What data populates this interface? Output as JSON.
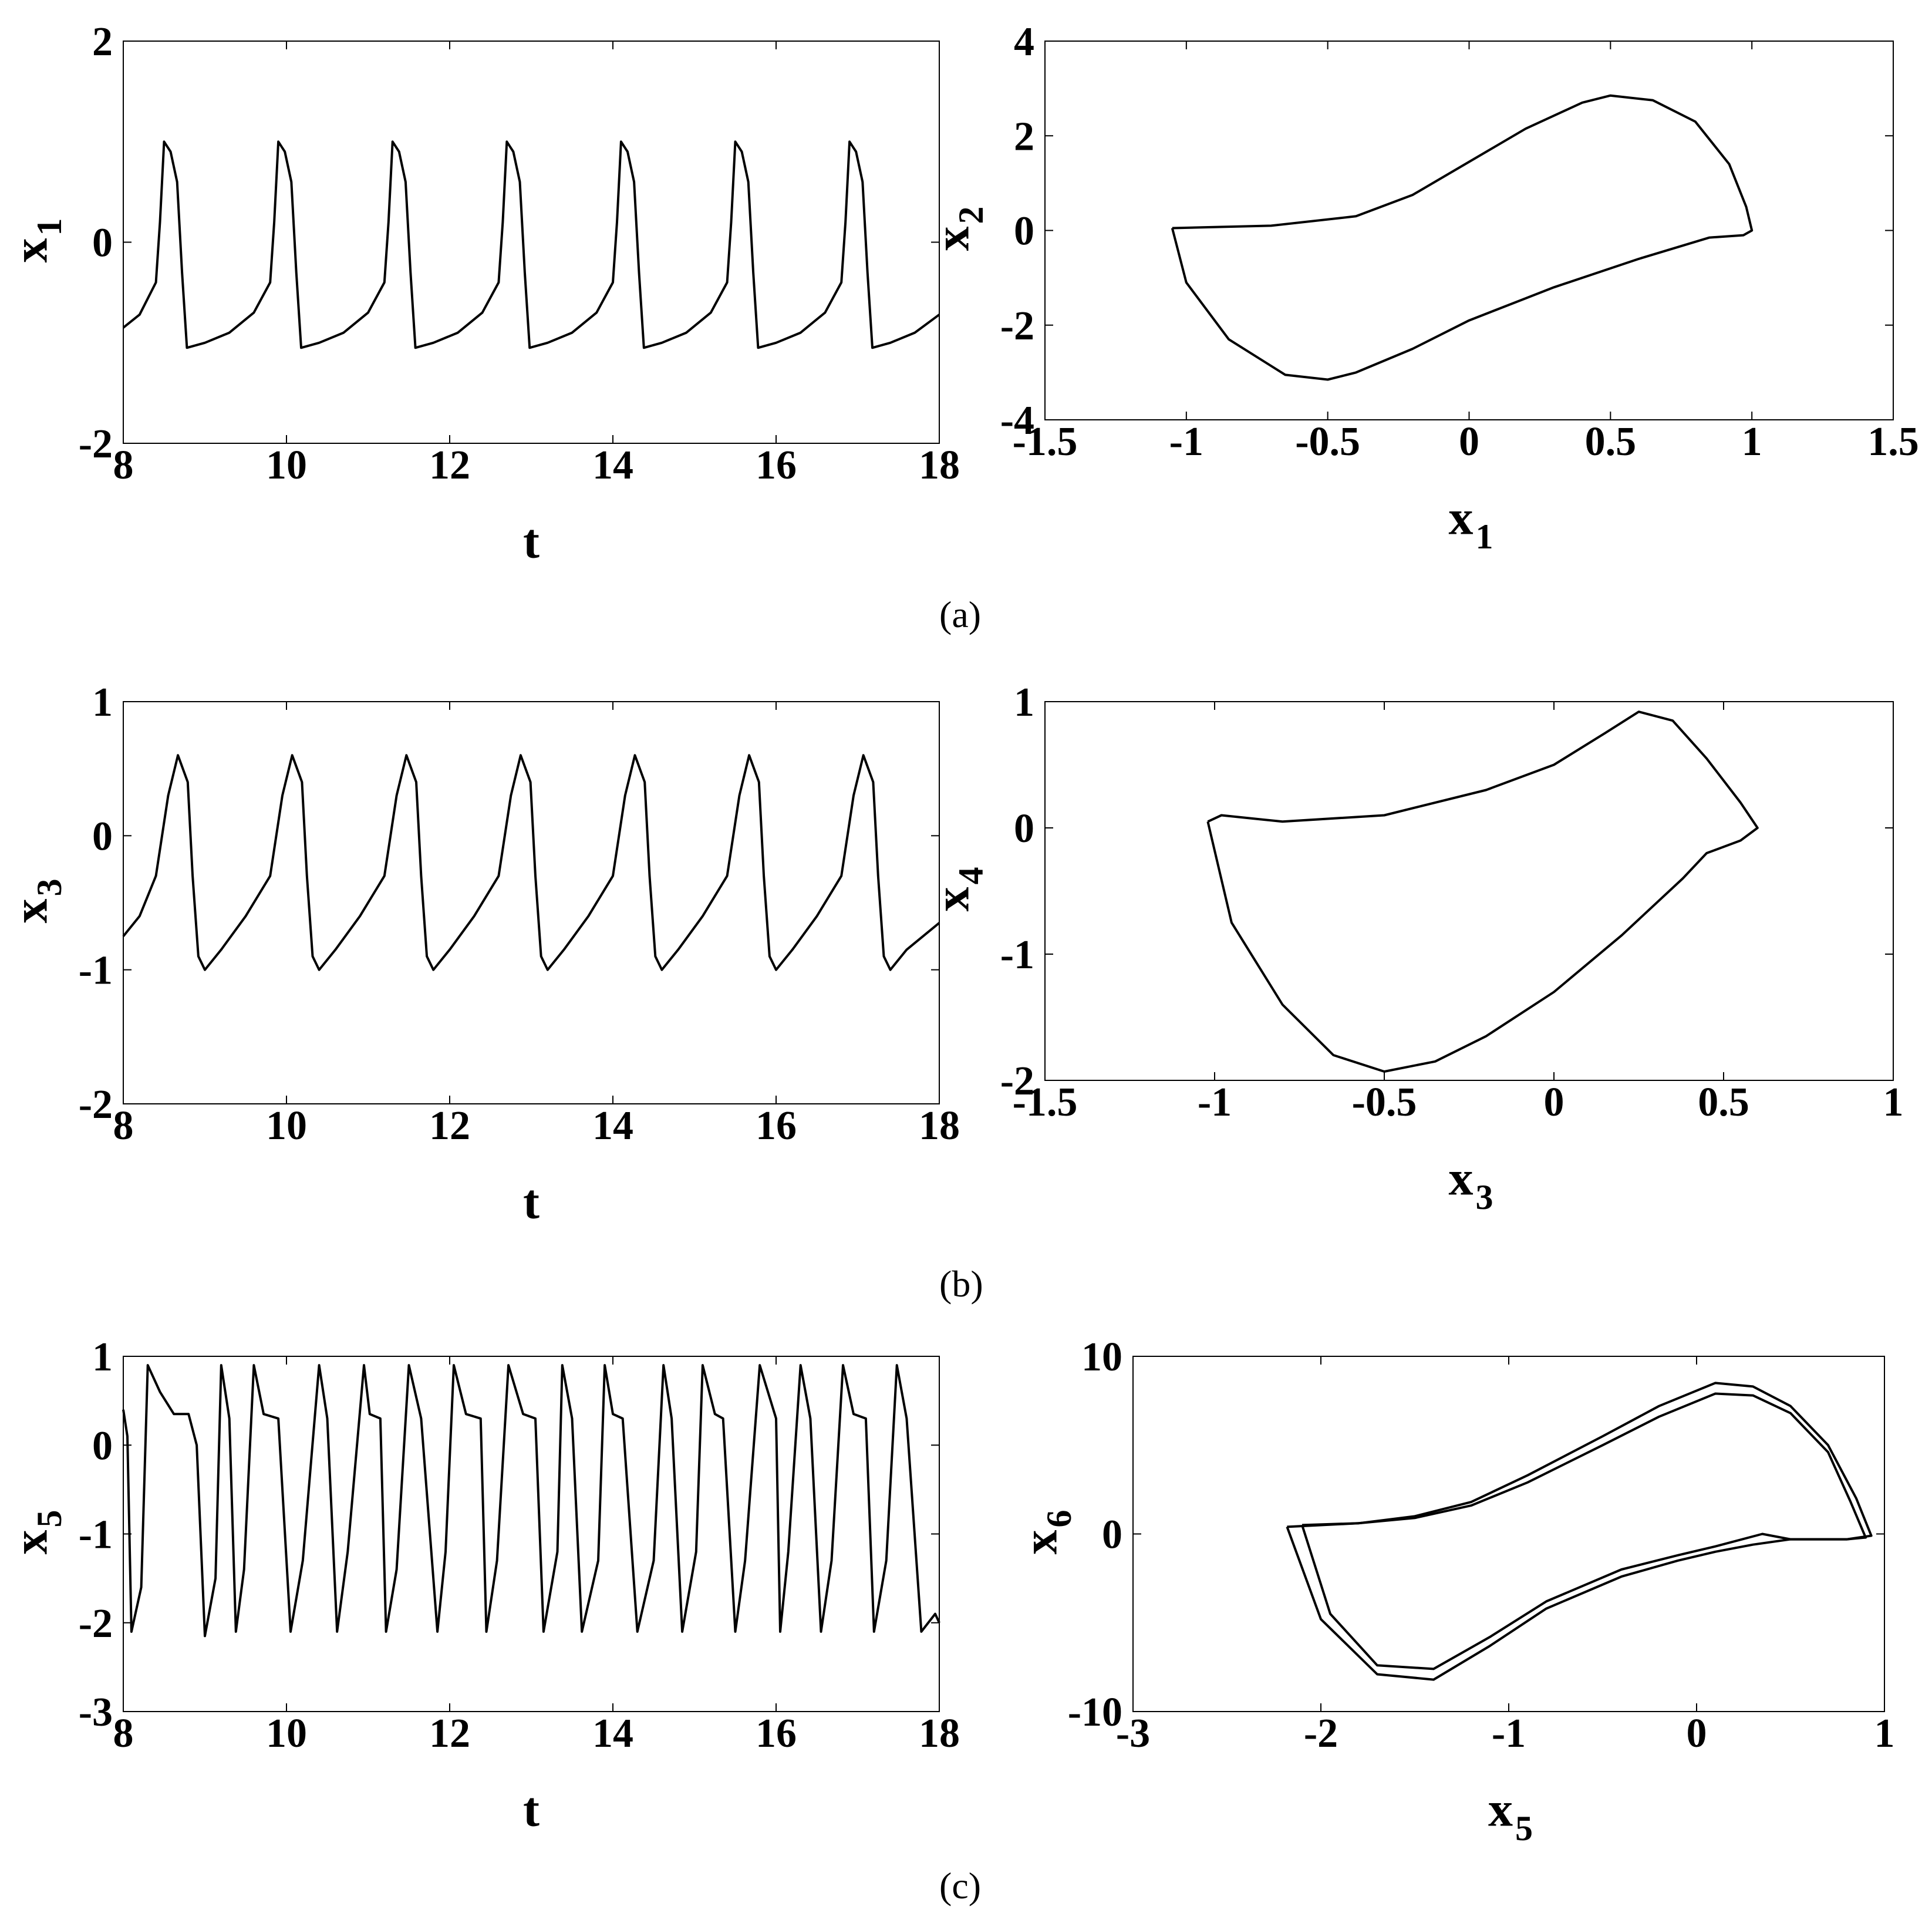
{
  "chart_data": [
    {
      "type": "line",
      "panel": "a",
      "xlabel": "t",
      "ylabel": {
        "main": "x",
        "sub": "1"
      },
      "xlim": [
        8,
        18
      ],
      "ylim": [
        -2,
        2
      ],
      "xticks": [
        "8",
        "10",
        "12",
        "14",
        "16",
        "18"
      ],
      "yticks": [
        "-2",
        "0",
        "2"
      ],
      "series": [
        {
          "x": [
            8.0,
            8.2,
            8.4,
            8.45,
            8.5,
            8.58,
            8.66,
            8.72,
            8.78,
            9.0,
            9.3,
            9.6,
            9.8,
            9.85,
            9.9,
            9.98,
            10.06,
            10.12,
            10.18,
            10.4,
            10.7,
            11.0,
            11.2,
            11.25,
            11.3,
            11.38,
            11.46,
            11.52,
            11.58,
            11.8,
            12.1,
            12.4,
            12.6,
            12.65,
            12.7,
            12.78,
            12.86,
            12.92,
            12.98,
            13.2,
            13.5,
            13.8,
            14.0,
            14.05,
            14.1,
            14.18,
            14.26,
            14.32,
            14.38,
            14.6,
            14.9,
            15.2,
            15.4,
            15.45,
            15.5,
            15.58,
            15.66,
            15.72,
            15.78,
            16.0,
            16.3,
            16.6,
            16.8,
            16.85,
            16.9,
            16.98,
            17.06,
            17.12,
            17.18,
            17.4,
            17.7,
            18.0
          ],
          "y": [
            -0.85,
            -0.72,
            -0.4,
            0.2,
            1.0,
            0.9,
            0.6,
            -0.3,
            -1.05,
            -1.0,
            -0.9,
            -0.7,
            -0.4,
            0.2,
            1.0,
            0.9,
            0.6,
            -0.3,
            -1.05,
            -1.0,
            -0.9,
            -0.7,
            -0.4,
            0.2,
            1.0,
            0.9,
            0.6,
            -0.3,
            -1.05,
            -1.0,
            -0.9,
            -0.7,
            -0.4,
            0.2,
            1.0,
            0.9,
            0.6,
            -0.3,
            -1.05,
            -1.0,
            -0.9,
            -0.7,
            -0.4,
            0.2,
            1.0,
            0.9,
            0.6,
            -0.3,
            -1.05,
            -1.0,
            -0.9,
            -0.7,
            -0.4,
            0.2,
            1.0,
            0.9,
            0.6,
            -0.3,
            -1.05,
            -1.0,
            -0.9,
            -0.7,
            -0.4,
            0.2,
            1.0,
            0.9,
            0.6,
            -0.3,
            -1.05,
            -1.0,
            -0.9,
            -0.72
          ]
        }
      ]
    },
    {
      "type": "line",
      "panel": "a",
      "xlabel": {
        "main": "x",
        "sub": "1"
      },
      "ylabel": {
        "main": "x",
        "sub": "2"
      },
      "xlim": [
        -1.5,
        1.5
      ],
      "ylim": [
        -4,
        4
      ],
      "xticks": [
        "-1.5",
        "-1",
        "-0.5",
        "0",
        "0.5",
        "1",
        "1.5"
      ],
      "yticks": [
        "-4",
        "-2",
        "0",
        "2",
        "4"
      ],
      "series": [
        {
          "x": [
            -1.05,
            -0.7,
            -0.4,
            -0.2,
            0.0,
            0.2,
            0.4,
            0.5,
            0.65,
            0.8,
            0.92,
            0.98,
            1.0,
            0.97,
            0.85,
            0.6,
            0.3,
            0.0,
            -0.2,
            -0.4,
            -0.5,
            -0.65,
            -0.85,
            -1.0,
            -1.05
          ],
          "y": [
            0.05,
            0.1,
            0.3,
            0.75,
            1.45,
            2.15,
            2.7,
            2.85,
            2.75,
            2.3,
            1.4,
            0.5,
            0.0,
            -0.1,
            -0.15,
            -0.6,
            -1.2,
            -1.9,
            -2.5,
            -3.0,
            -3.15,
            -3.05,
            -2.3,
            -1.1,
            0.05
          ]
        }
      ]
    },
    {
      "type": "line",
      "panel": "b",
      "xlabel": "t",
      "ylabel": {
        "main": "x",
        "sub": "3"
      },
      "xlim": [
        8,
        18
      ],
      "ylim": [
        -2,
        1
      ],
      "xticks": [
        "8",
        "10",
        "12",
        "14",
        "16",
        "18"
      ],
      "yticks": [
        "-2",
        "-1",
        "0",
        "1"
      ],
      "series": [
        {
          "x": [
            8.0,
            8.2,
            8.4,
            8.55,
            8.67,
            8.79,
            8.85,
            8.92,
            9.0,
            9.2,
            9.5,
            9.8,
            9.95,
            10.07,
            10.19,
            10.25,
            10.32,
            10.4,
            10.6,
            10.9,
            11.2,
            11.35,
            11.47,
            11.59,
            11.65,
            11.72,
            11.8,
            12.0,
            12.3,
            12.6,
            12.75,
            12.87,
            12.99,
            13.05,
            13.12,
            13.2,
            13.4,
            13.7,
            14.0,
            14.15,
            14.27,
            14.39,
            14.45,
            14.52,
            14.6,
            14.8,
            15.1,
            15.4,
            15.55,
            15.67,
            15.79,
            15.85,
            15.92,
            16.0,
            16.2,
            16.5,
            16.8,
            16.95,
            17.07,
            17.19,
            17.25,
            17.32,
            17.4,
            17.6,
            17.9,
            18.0
          ],
          "y": [
            -0.75,
            -0.6,
            -0.3,
            0.3,
            0.6,
            0.4,
            -0.3,
            -0.9,
            -1.0,
            -0.85,
            -0.6,
            -0.3,
            0.3,
            0.6,
            0.4,
            -0.3,
            -0.9,
            -1.0,
            -0.85,
            -0.6,
            -0.3,
            0.3,
            0.6,
            0.4,
            -0.3,
            -0.9,
            -1.0,
            -0.85,
            -0.6,
            -0.3,
            0.3,
            0.6,
            0.4,
            -0.3,
            -0.9,
            -1.0,
            -0.85,
            -0.6,
            -0.3,
            0.3,
            0.6,
            0.4,
            -0.3,
            -0.9,
            -1.0,
            -0.85,
            -0.6,
            -0.3,
            0.3,
            0.6,
            0.4,
            -0.3,
            -0.9,
            -1.0,
            -0.85,
            -0.6,
            -0.3,
            0.3,
            0.6,
            0.4,
            -0.3,
            -0.9,
            -1.0,
            -0.85,
            -0.7,
            -0.65
          ]
        }
      ]
    },
    {
      "type": "line",
      "panel": "b",
      "xlabel": {
        "main": "x",
        "sub": "3"
      },
      "ylabel": {
        "main": "x",
        "sub": "4"
      },
      "xlim": [
        -1.5,
        1
      ],
      "ylim": [
        -2,
        1
      ],
      "xticks": [
        "-1.5",
        "-1",
        "-0.5",
        "0",
        "0.5",
        "1"
      ],
      "yticks": [
        "-2",
        "-1",
        "0",
        "1"
      ],
      "series": [
        {
          "x": [
            -1.02,
            -0.98,
            -0.8,
            -0.5,
            -0.2,
            0.0,
            0.15,
            0.25,
            0.35,
            0.45,
            0.55,
            0.6,
            0.55,
            0.45,
            0.38,
            0.2,
            0.0,
            -0.2,
            -0.35,
            -0.5,
            -0.65,
            -0.8,
            -0.95,
            -1.02
          ],
          "y": [
            0.05,
            0.1,
            0.05,
            0.1,
            0.3,
            0.5,
            0.75,
            0.92,
            0.85,
            0.55,
            0.2,
            0.0,
            -0.1,
            -0.2,
            -0.4,
            -0.85,
            -1.3,
            -1.65,
            -1.85,
            -1.93,
            -1.8,
            -1.4,
            -0.75,
            0.05
          ]
        }
      ]
    },
    {
      "type": "line",
      "panel": "c",
      "xlabel": "t",
      "ylabel": {
        "main": "x",
        "sub": "5"
      },
      "xlim": [
        8,
        18
      ],
      "ylim": [
        -3,
        1
      ],
      "xticks": [
        "8",
        "10",
        "12",
        "14",
        "16",
        "18"
      ],
      "yticks": [
        "-3",
        "-2",
        "-1",
        "0",
        "1"
      ],
      "series": [
        {
          "x": [
            8.0,
            8.05,
            8.1,
            8.22,
            8.3,
            8.45,
            8.62,
            8.8,
            8.9,
            9.0,
            9.13,
            9.2,
            9.3,
            9.38,
            9.48,
            9.6,
            9.72,
            9.9,
            10.05,
            10.2,
            10.4,
            10.5,
            10.62,
            10.75,
            10.95,
            11.02,
            11.15,
            11.22,
            11.35,
            11.5,
            11.65,
            11.85,
            11.95,
            12.05,
            12.2,
            12.38,
            12.45,
            12.58,
            12.72,
            12.9,
            13.05,
            13.15,
            13.32,
            13.38,
            13.5,
            13.62,
            13.82,
            13.9,
            14.0,
            14.12,
            14.3,
            14.5,
            14.62,
            14.72,
            14.85,
            15.02,
            15.1,
            15.25,
            15.35,
            15.5,
            15.62,
            15.8,
            16.0,
            16.05,
            16.15,
            16.3,
            16.42,
            16.55,
            16.68,
            16.82,
            16.95,
            17.1,
            17.2,
            17.35,
            17.48,
            17.6,
            17.78,
            17.95,
            18.0
          ],
          "y": [
            0.4,
            0.1,
            -2.1,
            -1.6,
            0.9,
            0.6,
            0.35,
            0.35,
            0.0,
            -2.15,
            -1.5,
            0.9,
            0.3,
            -2.1,
            -1.4,
            0.9,
            0.35,
            0.3,
            -2.1,
            -1.3,
            0.9,
            0.3,
            -2.1,
            -1.2,
            0.9,
            0.35,
            0.3,
            -2.1,
            -1.4,
            0.9,
            0.3,
            -2.1,
            -1.2,
            0.9,
            0.35,
            0.3,
            -2.1,
            -1.3,
            0.9,
            0.35,
            0.3,
            -2.1,
            -1.2,
            0.9,
            0.3,
            -2.1,
            -1.3,
            0.9,
            0.35,
            0.3,
            -2.1,
            -1.3,
            0.9,
            0.3,
            -2.1,
            -1.2,
            0.9,
            0.35,
            0.3,
            -2.1,
            -1.3,
            0.9,
            0.3,
            -2.1,
            -1.2,
            0.9,
            0.3,
            -2.1,
            -1.3,
            0.9,
            0.35,
            0.3,
            -2.1,
            -1.3,
            0.9,
            0.3,
            -2.1,
            -1.9,
            -2.0
          ]
        }
      ]
    },
    {
      "type": "line",
      "panel": "c",
      "xlabel": {
        "main": "x",
        "sub": "5"
      },
      "ylabel": {
        "main": "x",
        "sub": "6"
      },
      "xlim": [
        -3,
        1
      ],
      "ylim": [
        -10,
        10
      ],
      "xticks": [
        "-3",
        "-2",
        "-1",
        "0",
        "1"
      ],
      "yticks": [
        "-10",
        "0",
        "10"
      ],
      "series": [
        {
          "x": [
            -2.1,
            -1.8,
            -1.5,
            -1.2,
            -0.9,
            -0.5,
            -0.2,
            0.1,
            0.3,
            0.5,
            0.7,
            0.82,
            0.9,
            0.8,
            0.5,
            0.35,
            0.1,
            -0.1,
            -0.4,
            -0.8,
            -1.1,
            -1.4,
            -1.7,
            -1.95,
            -2.1
          ],
          "y": [
            0.5,
            0.6,
            0.9,
            1.6,
            2.9,
            5.0,
            6.6,
            7.9,
            7.8,
            6.8,
            4.6,
            1.8,
            -0.2,
            -0.3,
            -0.3,
            0.0,
            -0.7,
            -1.2,
            -2.0,
            -3.8,
            -5.8,
            -7.6,
            -7.4,
            -4.5,
            0.5
          ]
        },
        {
          "x": [
            -2.18,
            -1.8,
            -1.5,
            -1.2,
            -0.9,
            -0.5,
            -0.2,
            0.1,
            0.3,
            0.5,
            0.7,
            0.85,
            0.93,
            0.8,
            0.5,
            0.3,
            0.1,
            -0.1,
            -0.4,
            -0.8,
            -1.1,
            -1.4,
            -1.7,
            -2.0,
            -2.18
          ],
          "y": [
            0.4,
            0.6,
            1.0,
            1.8,
            3.3,
            5.5,
            7.2,
            8.5,
            8.3,
            7.2,
            5.0,
            2.0,
            -0.1,
            -0.3,
            -0.3,
            -0.6,
            -1.0,
            -1.5,
            -2.4,
            -4.2,
            -6.3,
            -8.2,
            -7.9,
            -4.8,
            0.4
          ]
        }
      ]
    }
  ],
  "panel_labels": [
    "(a)",
    "(b)",
    "(c)"
  ]
}
